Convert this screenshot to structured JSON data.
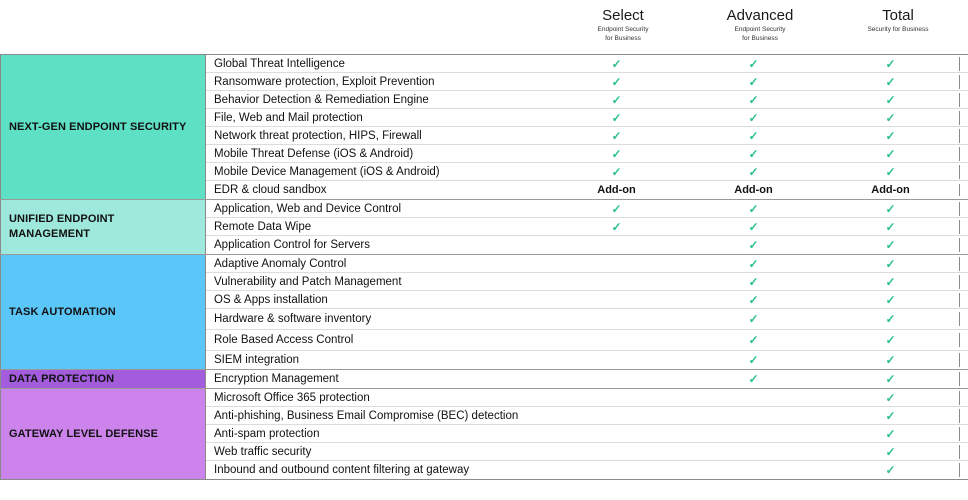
{
  "tiers": [
    {
      "name": "Select",
      "sub1": "Endpoint Security",
      "sub2": "for Business"
    },
    {
      "name": "Advanced",
      "sub1": "Endpoint Security",
      "sub2": "for Business"
    },
    {
      "name": "Total",
      "sub1": "Security for Business",
      "sub2": ""
    }
  ],
  "check_glyph": "✓",
  "colors": {
    "next_gen": "#5ee0c4",
    "unified": "#9ee9db",
    "task": "#5bc6f8",
    "data": "#a25cdc",
    "gateway": "#cc83ec",
    "check": "#2bc08f"
  },
  "groups": [
    {
      "id": "next-gen",
      "label": "NEXT-GEN ENDPOINT SECURITY",
      "color": "#5ee0c4",
      "rows": [
        {
          "feature": "Global Threat Intelligence",
          "cells": [
            "✓",
            "✓",
            "✓"
          ]
        },
        {
          "feature": "Ransomware protection, Exploit Prevention",
          "cells": [
            "✓",
            "✓",
            "✓"
          ]
        },
        {
          "feature": "Behavior Detection & Remediation Engine",
          "cells": [
            "✓",
            "✓",
            "✓"
          ]
        },
        {
          "feature": "File, Web and Mail protection",
          "cells": [
            "✓",
            "✓",
            "✓"
          ]
        },
        {
          "feature": "Network threat protection, HIPS, Firewall",
          "cells": [
            "✓",
            "✓",
            "✓"
          ]
        },
        {
          "feature": "Mobile Threat Defense (iOS & Android)",
          "cells": [
            "✓",
            "✓",
            "✓"
          ]
        },
        {
          "feature": "Mobile Device Management (iOS & Android)",
          "cells": [
            "✓",
            "✓",
            "✓"
          ]
        },
        {
          "feature": "EDR & cloud sandbox",
          "cells": [
            "Add-on",
            "Add-on",
            "Add-on"
          ]
        }
      ]
    },
    {
      "id": "unified",
      "label": "UNIFIED ENDPOINT MANAGEMENT",
      "color": "#9ee9db",
      "rows": [
        {
          "feature": "Application, Web and Device Control",
          "cells": [
            "✓",
            "✓",
            "✓"
          ]
        },
        {
          "feature": "Remote Data Wipe",
          "cells": [
            "✓",
            "✓",
            "✓"
          ]
        },
        {
          "feature": "Application Control for Servers",
          "cells": [
            "",
            "✓",
            "✓"
          ]
        }
      ]
    },
    {
      "id": "task",
      "label": "TASK AUTOMATION",
      "color": "#5bc6f8",
      "rows": [
        {
          "feature": "Adaptive Anomaly Control",
          "cells": [
            "",
            "✓",
            "✓"
          ]
        },
        {
          "feature": "Vulnerability and Patch Management",
          "cells": [
            "",
            "✓",
            "✓"
          ]
        },
        {
          "feature": "OS & Apps installation",
          "cells": [
            "",
            "✓",
            "✓"
          ]
        },
        {
          "feature": "Hardware & software inventory",
          "cells": [
            "",
            "✓",
            "✓"
          ]
        },
        {
          "feature": "Role Based Access Control",
          "cells": [
            "",
            "✓",
            "✓"
          ]
        },
        {
          "feature": "SIEM integration",
          "cells": [
            "",
            "✓",
            "✓"
          ]
        }
      ]
    },
    {
      "id": "data",
      "label": "DATA PROTECTION",
      "color": "#a25cdc",
      "rows": [
        {
          "feature": "Encryption Management",
          "cells": [
            "",
            "✓",
            "✓"
          ]
        }
      ]
    },
    {
      "id": "gateway",
      "label": "GATEWAY LEVEL DEFENSE",
      "color": "#cc83ec",
      "rows": [
        {
          "feature": "Microsoft Office 365 protection",
          "cells": [
            "",
            "",
            "✓"
          ]
        },
        {
          "feature": "Anti-phishing, Business Email Compromise (BEC) detection",
          "cells": [
            "",
            "",
            "✓"
          ]
        },
        {
          "feature": "Anti-spam protection",
          "cells": [
            "",
            "",
            "✓"
          ]
        },
        {
          "feature": "Web traffic security",
          "cells": [
            "",
            "",
            "✓"
          ]
        },
        {
          "feature": "Inbound and outbound content filtering at gateway",
          "cells": [
            "",
            "",
            "✓"
          ]
        }
      ]
    }
  ]
}
